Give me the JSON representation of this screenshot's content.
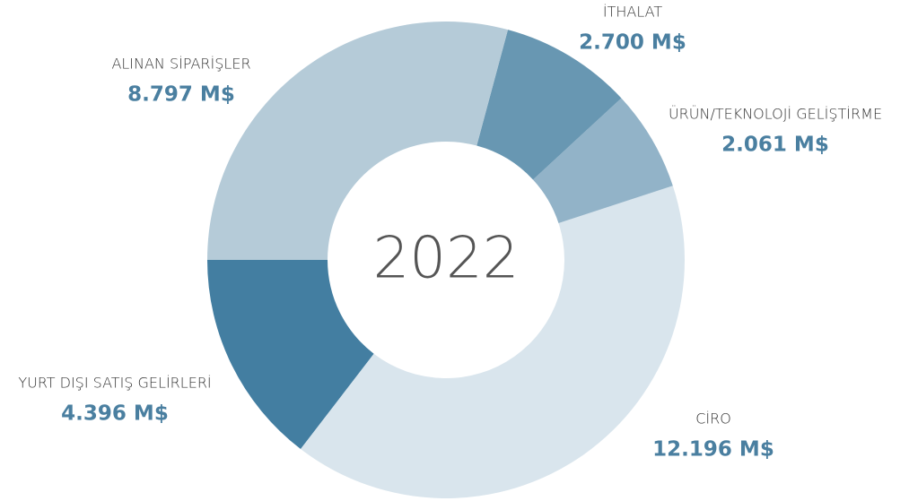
{
  "chart_data": {
    "type": "donut",
    "center_label": "2022",
    "categories": [
      "ALINAN SİPARİŞLER",
      "İTHALAT",
      "ÜRÜN/TEKNOLOJİ GELİŞTİRME",
      "CİRO",
      "YURT DIŞI SATIŞ GELİRLERİ"
    ],
    "values": [
      8797,
      2700,
      2061,
      12196,
      4396
    ],
    "value_labels": [
      "8.797 M$",
      "2.700 M$",
      "2.061 M$",
      "12.196 M$",
      "4.396 M$"
    ],
    "colors": [
      "#b5cbd8",
      "#6897b2",
      "#92b3c8",
      "#d9e5ed",
      "#437ea1"
    ]
  }
}
